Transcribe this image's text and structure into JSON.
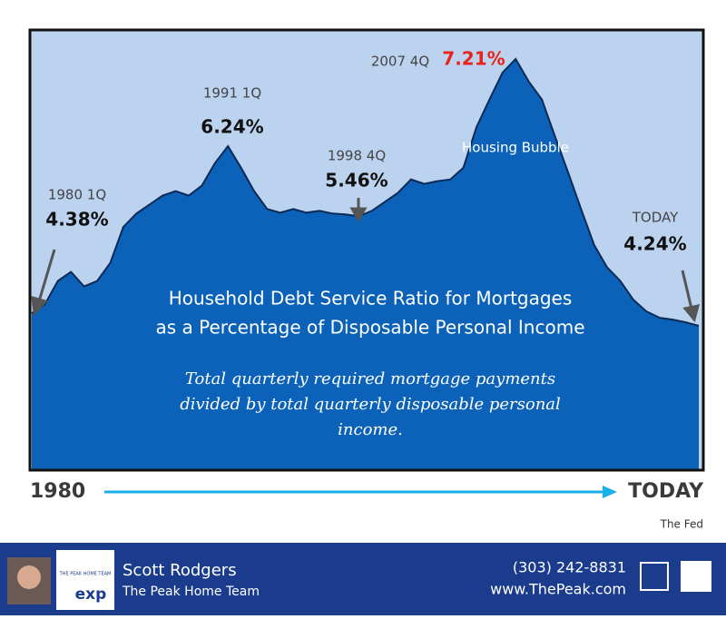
{
  "chart_data": {
    "type": "area",
    "xlabels": [
      "1980",
      "TODAY"
    ],
    "series": [
      {
        "color": "#0b62b8",
        "values": [
          4.38,
          4.48,
          4.74,
          4.84,
          4.68,
          4.74,
          4.94,
          5.34,
          5.49,
          5.59,
          5.69,
          5.74,
          5.69,
          5.8,
          6.05,
          6.24,
          6.0,
          5.74,
          5.54,
          5.5,
          5.54,
          5.5,
          5.52,
          5.49,
          5.48,
          5.46,
          5.52,
          5.62,
          5.72,
          5.87,
          5.82,
          5.85,
          5.87,
          6.0,
          6.45,
          6.76,
          7.06,
          7.21,
          6.96,
          6.76,
          6.35,
          5.95,
          5.54,
          5.14,
          4.89,
          4.74,
          4.53,
          4.4,
          4.33,
          4.31,
          4.28,
          4.24
        ]
      }
    ],
    "annotations": [
      {
        "label": "1980 1Q",
        "value": 4.38,
        "value_label": "4.38%"
      },
      {
        "label": "1991 1Q",
        "value": 6.24,
        "value_label": "6.24%"
      },
      {
        "label": "1998 4Q",
        "value": 5.46,
        "value_label": "5.46%"
      },
      {
        "label": "2007 4Q",
        "value": 7.21,
        "value_label": "7.21%",
        "color": "#e8231a"
      },
      {
        "label": "TODAY",
        "value": 4.24,
        "value_label": "4.24%"
      }
    ],
    "region_label": "Housing Bubble",
    "title_lines": [
      "Household Debt Service Ratio for Mortgages",
      "as a Percentage of Disposable Personal Income"
    ],
    "note_lines": [
      "Total quarterly required mortgage payments",
      "divided by total quarterly disposable personal",
      "income."
    ],
    "source": "The Fed"
  },
  "footer": {
    "name": "Scott Rodgers",
    "team": "The Peak Home Team",
    "phone": "(303) 242-8831",
    "website": "www.ThePeak.com",
    "logo_text": "THE PEAK HOME TEAM",
    "brokerage": "exp"
  }
}
